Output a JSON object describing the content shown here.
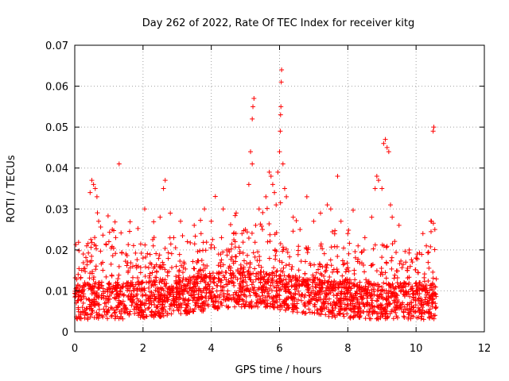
{
  "chart_data": {
    "type": "scatter",
    "title": "Day 262 of 2022, Rate Of TEC Index for receiver kitg",
    "xlabel": "GPS time / hours",
    "ylabel": "ROTI / TECUs",
    "xlim": [
      0,
      12
    ],
    "ylim": [
      0,
      0.07
    ],
    "x_ticks": [
      0,
      2,
      4,
      6,
      8,
      10,
      12
    ],
    "y_ticks": [
      0,
      0.01,
      0.02,
      0.03,
      0.04,
      0.05,
      0.06,
      0.07
    ],
    "x_tick_labels": [
      "0",
      "2",
      "4",
      "6",
      "8",
      "10",
      "12"
    ],
    "y_tick_labels": [
      "0",
      "0.01",
      "0.02",
      "0.03",
      "0.04",
      "0.05",
      "0.06",
      "0.07"
    ],
    "grid": true,
    "marker": "+",
    "color": "#ff0000",
    "data_x_range": [
      0,
      10.6
    ],
    "series": [
      {
        "name": "ROTI",
        "points": [
          [
            0.1,
            0.014
          ],
          [
            0.25,
            0.019
          ],
          [
            0.35,
            0.021
          ],
          [
            0.45,
            0.034
          ],
          [
            0.5,
            0.037
          ],
          [
            0.55,
            0.036
          ],
          [
            0.6,
            0.035
          ],
          [
            0.65,
            0.033
          ],
          [
            0.7,
            0.027
          ],
          [
            1.0,
            0.022
          ],
          [
            1.1,
            0.025
          ],
          [
            1.2,
            0.023
          ],
          [
            1.3,
            0.041
          ],
          [
            1.5,
            0.019
          ],
          [
            1.7,
            0.016
          ],
          [
            2.0,
            0.018
          ],
          [
            2.05,
            0.03
          ],
          [
            2.3,
            0.021
          ],
          [
            2.5,
            0.028
          ],
          [
            2.6,
            0.035
          ],
          [
            2.65,
            0.037
          ],
          [
            2.8,
            0.029
          ],
          [
            2.9,
            0.023
          ],
          [
            3.1,
            0.027
          ],
          [
            3.3,
            0.022
          ],
          [
            3.5,
            0.026
          ],
          [
            3.7,
            0.024
          ],
          [
            3.8,
            0.03
          ],
          [
            4.0,
            0.027
          ],
          [
            4.3,
            0.023
          ],
          [
            4.35,
            0.03
          ],
          [
            4.5,
            0.02
          ],
          [
            4.7,
            0.022
          ],
          [
            4.9,
            0.024
          ],
          [
            5.0,
            0.025
          ],
          [
            5.1,
            0.036
          ],
          [
            5.15,
            0.044
          ],
          [
            5.2,
            0.052
          ],
          [
            5.22,
            0.055
          ],
          [
            5.25,
            0.057
          ],
          [
            5.2,
            0.041
          ],
          [
            5.3,
            0.026
          ],
          [
            5.4,
            0.03
          ],
          [
            5.5,
            0.025
          ],
          [
            5.6,
            0.033
          ],
          [
            5.7,
            0.039
          ],
          [
            5.75,
            0.038
          ],
          [
            5.8,
            0.036
          ],
          [
            5.85,
            0.034
          ],
          [
            5.9,
            0.031
          ],
          [
            5.95,
            0.039
          ],
          [
            6.0,
            0.044
          ],
          [
            6.02,
            0.049
          ],
          [
            6.03,
            0.053
          ],
          [
            6.04,
            0.055
          ],
          [
            6.05,
            0.061
          ],
          [
            6.06,
            0.064
          ],
          [
            6.1,
            0.041
          ],
          [
            6.15,
            0.035
          ],
          [
            6.2,
            0.033
          ],
          [
            6.4,
            0.028
          ],
          [
            6.6,
            0.025
          ],
          [
            6.8,
            0.033
          ],
          [
            7.0,
            0.027
          ],
          [
            7.2,
            0.029
          ],
          [
            7.4,
            0.031
          ],
          [
            7.5,
            0.03
          ],
          [
            7.7,
            0.038
          ],
          [
            7.8,
            0.027
          ],
          [
            8.0,
            0.024
          ],
          [
            8.3,
            0.021
          ],
          [
            8.5,
            0.023
          ],
          [
            8.7,
            0.028
          ],
          [
            8.8,
            0.035
          ],
          [
            8.85,
            0.038
          ],
          [
            8.9,
            0.037
          ],
          [
            9.0,
            0.035
          ],
          [
            9.05,
            0.046
          ],
          [
            9.1,
            0.047
          ],
          [
            9.15,
            0.045
          ],
          [
            9.2,
            0.044
          ],
          [
            9.25,
            0.031
          ],
          [
            9.3,
            0.028
          ],
          [
            9.5,
            0.026
          ],
          [
            9.8,
            0.02
          ],
          [
            10.0,
            0.018
          ],
          [
            10.2,
            0.024
          ],
          [
            10.3,
            0.021
          ],
          [
            10.45,
            0.027
          ],
          [
            10.5,
            0.049
          ],
          [
            10.52,
            0.05
          ],
          [
            10.55,
            0.025
          ]
        ]
      }
    ],
    "envelope_note": "Dense scatter: baseline ~0.003-0.015 TECU/s throughout 0-10.6 h, with frequent excursions to 0.02-0.03."
  }
}
